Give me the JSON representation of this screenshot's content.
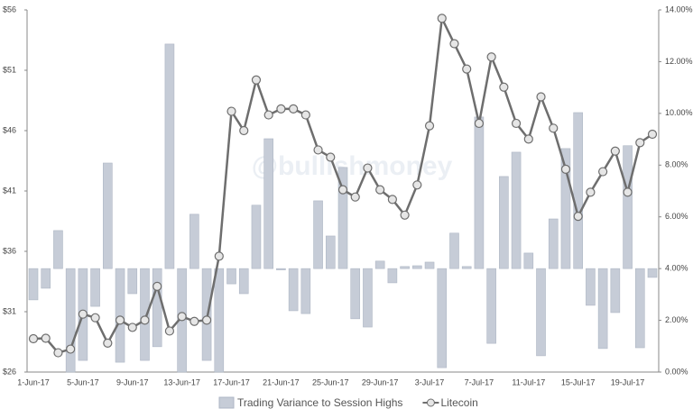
{
  "chart_data": {
    "type": "bar-line",
    "watermark": "@bullishmoney",
    "categories": [
      "1-Jun-17",
      null,
      null,
      null,
      "5-Jun-17",
      null,
      null,
      null,
      "9-Jun-17",
      null,
      null,
      null,
      "13-Jun-17",
      null,
      null,
      null,
      "17-Jun-17",
      null,
      null,
      null,
      "21-Jun-17",
      null,
      null,
      null,
      "25-Jun-17",
      null,
      null,
      null,
      "29-Jun-17",
      null,
      null,
      null,
      "3-Jul-17",
      null,
      null,
      null,
      "7-Jul-17",
      null,
      null,
      null,
      "11-Jul-17",
      null,
      null,
      null,
      "15-Jul-17",
      null,
      null,
      null,
      "19-Jul-17",
      null,
      null
    ],
    "series": [
      {
        "name": "Trading Variance to Session Highs",
        "type": "bar",
        "axis": "y2",
        "color": "#c6ccd7",
        "values": [
          2.79,
          3.24,
          5.47,
          0,
          0.45,
          2.54,
          8.08,
          0.38,
          3.03,
          0.45,
          0.98,
          12.68,
          0,
          6.1,
          0.45,
          0,
          3.41,
          3.03,
          6.45,
          9.02,
          3.95,
          2.37,
          2.26,
          6.62,
          5.26,
          7.91,
          2.06,
          1.74,
          4.29,
          3.45,
          4.08,
          4.11,
          4.25,
          0.17,
          5.37,
          4.08,
          9.86,
          1.11,
          7.56,
          8.5,
          4.6,
          0.63,
          5.92,
          8.64,
          10.03,
          2.58,
          0.91,
          2.3,
          8.75,
          0.94,
          3.66
        ]
      },
      {
        "name": "Litecoin",
        "type": "line",
        "axis": "y",
        "color": "#6e6e6e",
        "values": [
          28.76,
          28.8,
          27.6,
          27.9,
          30.8,
          30.5,
          28.4,
          30.3,
          29.7,
          30.3,
          33.1,
          29.4,
          30.6,
          30.2,
          30.3,
          35.6,
          47.6,
          46.0,
          50.2,
          47.3,
          47.8,
          47.8,
          47.3,
          44.4,
          43.8,
          41.1,
          40.5,
          42.9,
          41.1,
          40.3,
          39.0,
          41.5,
          46.4,
          55.3,
          53.2,
          51.1,
          46.6,
          52.1,
          49.6,
          46.6,
          45.3,
          48.8,
          46.2,
          42.8,
          38.9,
          40.9,
          42.6,
          44.3,
          40.9,
          45.0,
          45.7
        ]
      }
    ],
    "ylim": [
      26,
      56
    ],
    "yticks": [
      {
        "value": 26,
        "label": "$26"
      },
      {
        "value": 31,
        "label": "$31"
      },
      {
        "value": 36,
        "label": "$36"
      },
      {
        "value": 41,
        "label": "$41"
      },
      {
        "value": 46,
        "label": "$46"
      },
      {
        "value": 51,
        "label": "$51"
      },
      {
        "value": 56,
        "label": "$56"
      }
    ],
    "y2lim": [
      0,
      14
    ],
    "y2ticks": [
      {
        "value": 0,
        "label": "0.00%"
      },
      {
        "value": 2,
        "label": "2.00%"
      },
      {
        "value": 4,
        "label": "4.00%"
      },
      {
        "value": 6,
        "label": "6.00%"
      },
      {
        "value": 8,
        "label": "8.00%"
      },
      {
        "value": 10,
        "label": "10.00%"
      },
      {
        "value": 12,
        "label": "12.00%"
      },
      {
        "value": 14,
        "label": "14.00%"
      }
    ],
    "y2_bar_base": 4,
    "legend": "bottom"
  }
}
